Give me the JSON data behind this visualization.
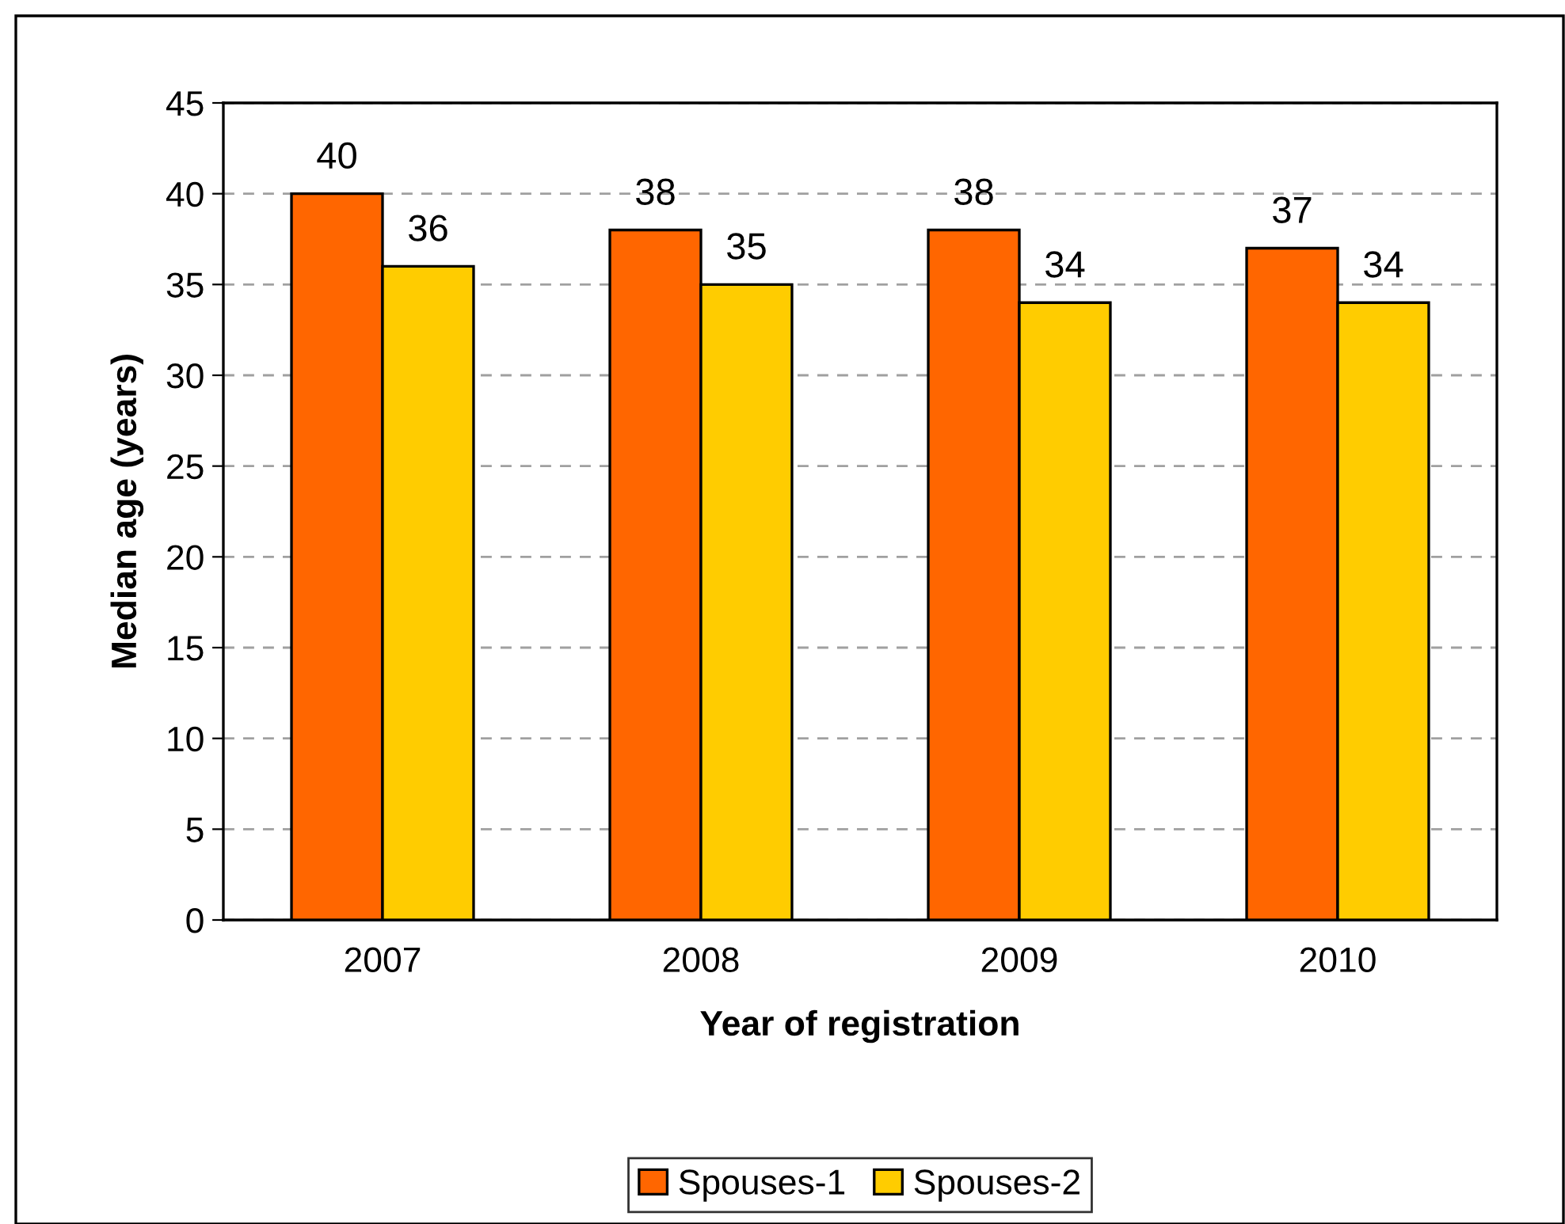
{
  "chart_data": {
    "type": "bar",
    "xlabel": "Year of registration",
    "ylabel": "Median age (years)",
    "categories": [
      "2007",
      "2008",
      "2009",
      "2010"
    ],
    "series": [
      {
        "name": "Spouses-1",
        "color": "#ff6600",
        "values": [
          40,
          38,
          38,
          37
        ]
      },
      {
        "name": "Spouses-2",
        "color": "#ffcc00",
        "values": [
          36,
          35,
          34,
          34
        ]
      }
    ],
    "ylim": [
      0,
      45
    ],
    "yticks": [
      0,
      5,
      10,
      15,
      20,
      25,
      30,
      35,
      40,
      45
    ],
    "grid": "y",
    "legend": "bottom",
    "data_labels": true
  }
}
